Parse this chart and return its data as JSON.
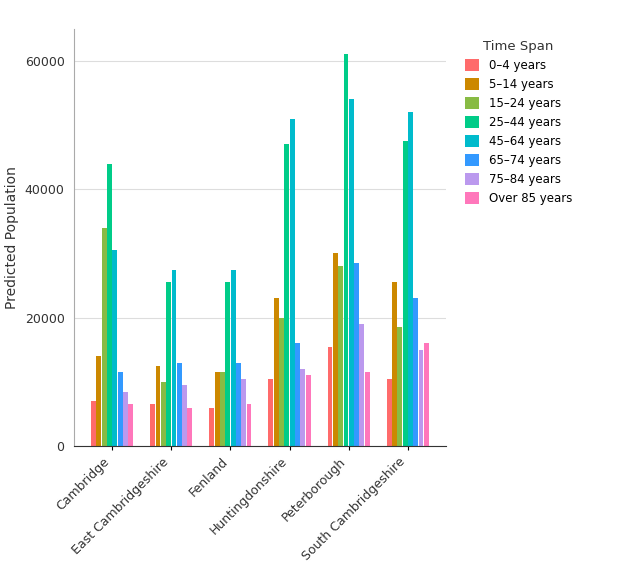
{
  "title": "",
  "ylabel": "Predicted Population",
  "categories": [
    "Cambridge",
    "East Cambridgeshire",
    "Fenland",
    "Huntingdonshire",
    "Peterborough",
    "South Cambridgeshire"
  ],
  "time_spans": [
    "0–4 years",
    "5–14 years",
    "15–24 years",
    "25–44 years",
    "45–64 years",
    "65–74 years",
    "75–84 years",
    "Over 85 years"
  ],
  "colors": [
    "#FF6B6B",
    "#CC8800",
    "#88BB44",
    "#00CC88",
    "#00BBCC",
    "#3399FF",
    "#BB99EE",
    "#FF77BB"
  ],
  "values": {
    "0–4 years": [
      7000,
      6500,
      6000,
      10500,
      15500,
      10500
    ],
    "5–14 years": [
      14000,
      12500,
      11500,
      23000,
      30000,
      25500
    ],
    "15–24 years": [
      34000,
      10000,
      11500,
      20000,
      28000,
      18500
    ],
    "25–44 years": [
      44000,
      25500,
      25500,
      47000,
      61000,
      47500
    ],
    "45–64 years": [
      30500,
      27500,
      27500,
      51000,
      54000,
      52000
    ],
    "65–74 years": [
      11500,
      13000,
      13000,
      16000,
      28500,
      23000
    ],
    "75–84 years": [
      8500,
      9500,
      10500,
      12000,
      19000,
      15000
    ],
    "Over 85 years": [
      6500,
      6000,
      6500,
      11000,
      11500,
      16000
    ]
  },
  "legend_title": "Time Span",
  "ylim": [
    0,
    65000
  ],
  "yticks": [
    0,
    20000,
    40000,
    60000
  ],
  "background_color": "#FFFFFF",
  "bar_width": 0.09,
  "figsize": [
    6.19,
    5.72
  ],
  "dpi": 100
}
